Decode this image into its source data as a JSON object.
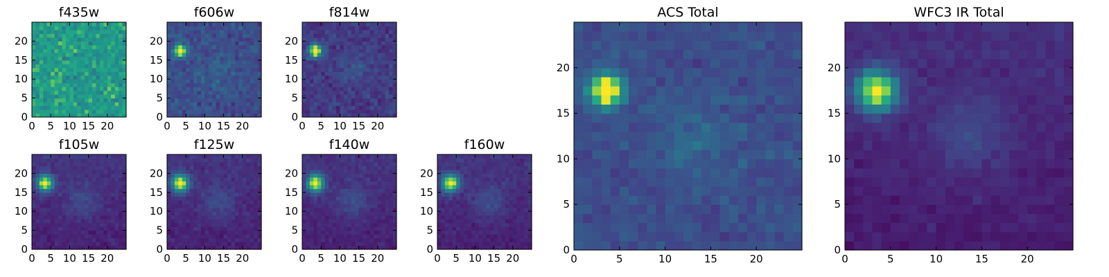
{
  "chart_data": [
    {
      "type": "heatmap",
      "title": "f435w",
      "xlim": [
        0,
        25
      ],
      "ylim": [
        0,
        25
      ],
      "xticks": [
        0,
        5,
        10,
        15,
        20
      ],
      "yticks": [
        0,
        5,
        10,
        15,
        20
      ],
      "colormap": "viridis",
      "source": {
        "x": 3,
        "y": 17,
        "amp": 0.0,
        "sigma": 1.4
      },
      "background": 0.68,
      "noise": 0.22,
      "diffuse_amp": 0.0
    },
    {
      "type": "heatmap",
      "title": "f606w",
      "xlim": [
        0,
        25
      ],
      "ylim": [
        0,
        25
      ],
      "xticks": [
        0,
        5,
        10,
        15,
        20
      ],
      "yticks": [
        0,
        5,
        10,
        15,
        20
      ],
      "colormap": "viridis",
      "source": {
        "x": 3,
        "y": 17,
        "amp": 0.95,
        "sigma": 1.1
      },
      "background": 0.3,
      "noise": 0.16,
      "diffuse_amp": 0.08
    },
    {
      "type": "heatmap",
      "title": "f814w",
      "xlim": [
        0,
        25
      ],
      "ylim": [
        0,
        25
      ],
      "xticks": [
        0,
        5,
        10,
        15,
        20
      ],
      "yticks": [
        0,
        5,
        10,
        15,
        20
      ],
      "colormap": "viridis",
      "source": {
        "x": 3,
        "y": 17,
        "amp": 0.95,
        "sigma": 1.2
      },
      "background": 0.22,
      "noise": 0.14,
      "diffuse_amp": 0.1
    },
    {
      "type": "heatmap",
      "title": "f105w",
      "xlim": [
        0,
        25
      ],
      "ylim": [
        0,
        25
      ],
      "xticks": [
        0,
        5,
        10,
        15,
        20
      ],
      "yticks": [
        0,
        5,
        10,
        15,
        20
      ],
      "colormap": "viridis",
      "source": {
        "x": 3,
        "y": 17,
        "amp": 0.9,
        "sigma": 1.5
      },
      "background": 0.2,
      "noise": 0.08,
      "diffuse_amp": 0.14
    },
    {
      "type": "heatmap",
      "title": "f125w",
      "xlim": [
        0,
        25
      ],
      "ylim": [
        0,
        25
      ],
      "xticks": [
        0,
        5,
        10,
        15,
        20
      ],
      "yticks": [
        0,
        5,
        10,
        15,
        20
      ],
      "colormap": "viridis",
      "source": {
        "x": 3,
        "y": 17,
        "amp": 0.9,
        "sigma": 1.6
      },
      "background": 0.2,
      "noise": 0.08,
      "diffuse_amp": 0.14
    },
    {
      "type": "heatmap",
      "title": "f140w",
      "xlim": [
        0,
        25
      ],
      "ylim": [
        0,
        25
      ],
      "xticks": [
        0,
        5,
        10,
        15,
        20
      ],
      "yticks": [
        0,
        5,
        10,
        15,
        20
      ],
      "colormap": "viridis",
      "source": {
        "x": 3,
        "y": 17,
        "amp": 0.9,
        "sigma": 1.6
      },
      "background": 0.2,
      "noise": 0.08,
      "diffuse_amp": 0.14
    },
    {
      "type": "heatmap",
      "title": "f160w",
      "xlim": [
        0,
        25
      ],
      "ylim": [
        0,
        25
      ],
      "xticks": [
        0,
        5,
        10,
        15,
        20
      ],
      "yticks": [
        0,
        5,
        10,
        15,
        20
      ],
      "colormap": "viridis",
      "source": {
        "x": 3,
        "y": 17,
        "amp": 0.9,
        "sigma": 1.6
      },
      "background": 0.2,
      "noise": 0.08,
      "diffuse_amp": 0.14
    },
    {
      "type": "heatmap",
      "title": "ACS Total",
      "xlim": [
        0,
        25
      ],
      "ylim": [
        0,
        25
      ],
      "xticks": [
        0,
        5,
        10,
        15,
        20
      ],
      "yticks": [
        0,
        5,
        10,
        15,
        20
      ],
      "colormap": "viridis",
      "source": {
        "x": 3,
        "y": 17,
        "amp": 0.9,
        "sigma": 1.3
      },
      "background": 0.3,
      "noise": 0.12,
      "diffuse_amp": 0.12
    },
    {
      "type": "heatmap",
      "title": "WFC3 IR Total",
      "xlim": [
        0,
        25
      ],
      "ylim": [
        0,
        25
      ],
      "xticks": [
        0,
        5,
        10,
        15,
        20
      ],
      "yticks": [
        0,
        5,
        10,
        15,
        20
      ],
      "colormap": "viridis",
      "source": {
        "x": 3,
        "y": 17,
        "amp": 0.9,
        "sigma": 1.6
      },
      "background": 0.18,
      "noise": 0.07,
      "diffuse_amp": 0.14
    }
  ]
}
